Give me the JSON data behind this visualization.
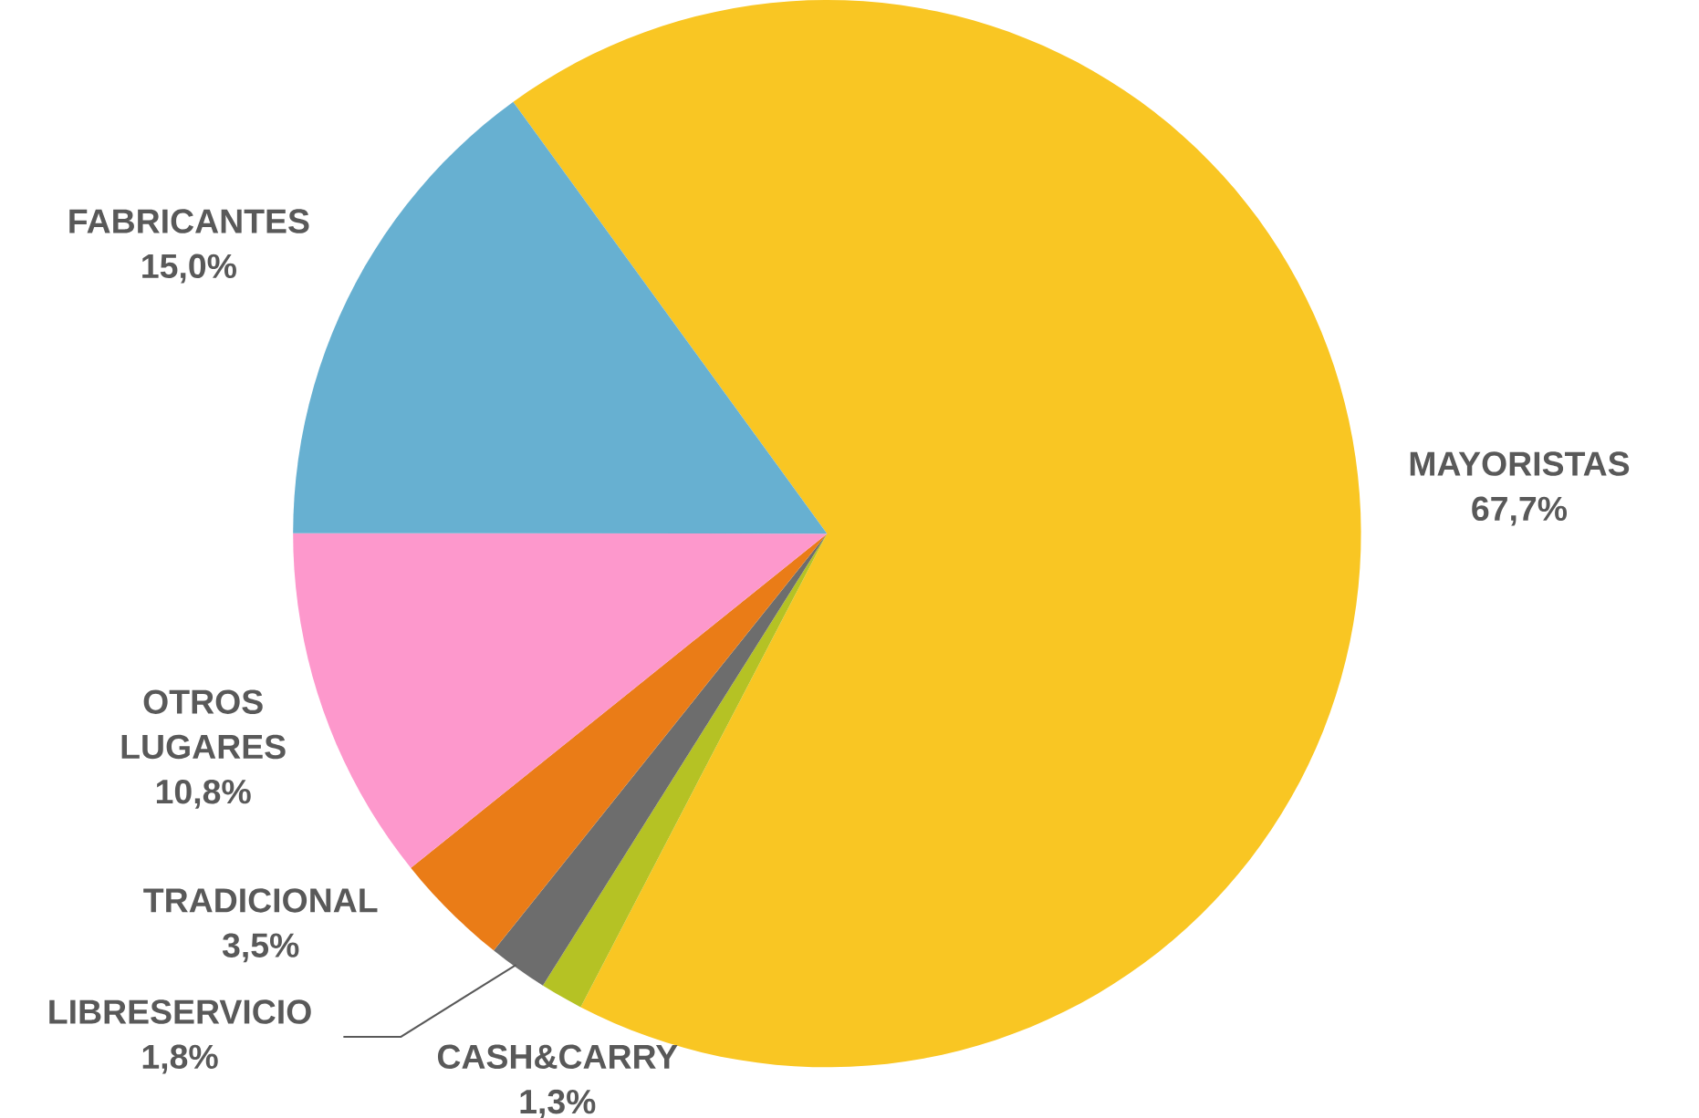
{
  "chart_data": {
    "type": "pie",
    "categories": [
      "MAYORISTAS",
      "CASH&CARRY",
      "LIBRESERVICIO",
      "TRADICIONAL",
      "OTROS LUGARES",
      "FABRICANTES"
    ],
    "values": [
      67.7,
      1.3,
      1.8,
      3.5,
      10.8,
      15.0
    ],
    "value_labels": [
      "67,7%",
      "1,3%",
      "1,8%",
      "3,5%",
      "10,8%",
      "15,0%"
    ],
    "colors": [
      "#f9c623",
      "#b5c224",
      "#6d6d6d",
      "#ea7c17",
      "#fd98cc",
      "#67b0d1"
    ]
  }
}
